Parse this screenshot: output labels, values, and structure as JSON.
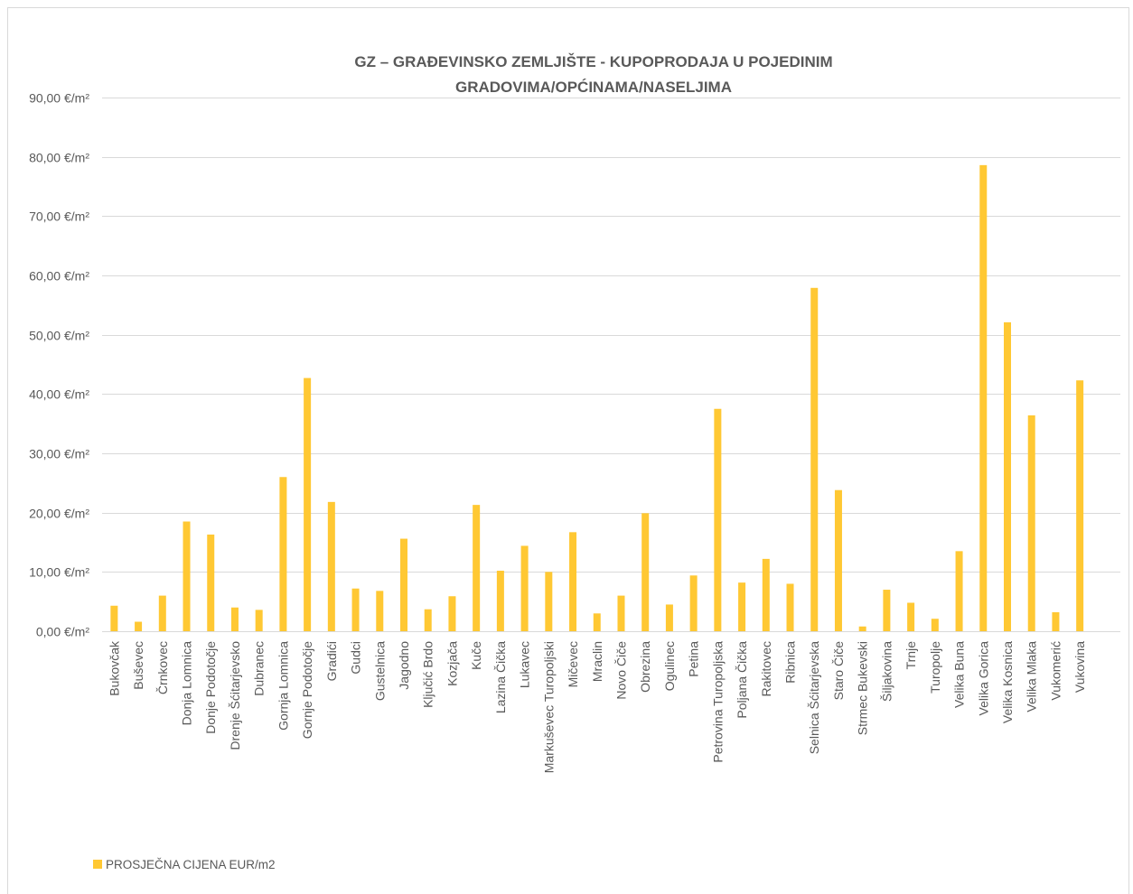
{
  "chart_data": {
    "type": "bar",
    "title_lines": [
      "GZ – GRAĐEVINSKO ZEMLJIŠTE - KUPOPRODAJA  U POJEDINIM",
      "GRADOVIMA/OPĆINAMA/NASELJIMA"
    ],
    "xlabel": "",
    "ylabel": "",
    "ylim": [
      0,
      90
    ],
    "y_ticks": [
      0,
      10,
      20,
      30,
      40,
      50,
      60,
      70,
      80,
      90
    ],
    "y_tick_labels": [
      "0,00 €/m²",
      "10,00 €/m²",
      "20,00 €/m²",
      "30,00 €/m²",
      "40,00 €/m²",
      "50,00 €/m²",
      "60,00 €/m²",
      "70,00 €/m²",
      "80,00 €/m²",
      "90,00 €/m²"
    ],
    "grid": true,
    "legend": "bottom-left",
    "categories": [
      "Bukovčak",
      "Buševec",
      "Črnkovec",
      "Donja Lomnica",
      "Donje Podotočje",
      "Drenje Šćitarjevsko",
      "Dubranec",
      "Gornja Lomnica",
      "Gornje Podotočje",
      "Gradići",
      "Gudci",
      "Gustelnica",
      "Jagodno",
      "Ključić Brdo",
      "Kozjača",
      "Kuče",
      "Lazina Čička",
      "Lukavec",
      "Markuševec Turopoljski",
      "Mičevec",
      "Mraclin",
      "Novo Čiče",
      "Obrezina",
      "Ogulinec",
      "Petina",
      "Petrovina Turopoljska",
      "Poljana Čička",
      "Rakitovec",
      "Ribnica",
      "Selnica Šćitarjevska",
      "Staro Čiče",
      "Strmec Bukevski",
      "Šiljakovina",
      "Trnje",
      "Turopolje",
      "Velika Buna",
      "Velika Gorica",
      "Velika Kosnica",
      "Velika Mlaka",
      "Vukomerić",
      "Vukovina"
    ],
    "series": [
      {
        "name": "PROSJEČNA CIJENA EUR/m2",
        "color": "#FFC833",
        "values": [
          4.3,
          1.6,
          6.0,
          18.5,
          16.3,
          4.0,
          3.6,
          26.0,
          42.7,
          21.8,
          7.2,
          6.8,
          15.6,
          3.7,
          5.9,
          21.3,
          10.2,
          14.4,
          10.0,
          16.7,
          3.0,
          6.0,
          19.9,
          4.5,
          9.4,
          37.5,
          8.2,
          12.2,
          8.0,
          57.9,
          23.8,
          0.8,
          7.0,
          4.8,
          2.1,
          13.5,
          78.6,
          52.1,
          36.4,
          3.2,
          42.3
        ]
      }
    ]
  }
}
